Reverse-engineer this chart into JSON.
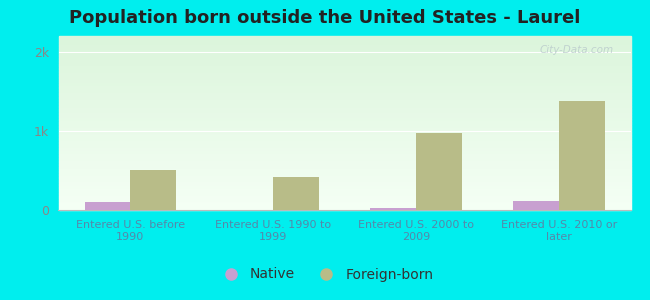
{
  "title": "Population born outside the United States - Laurel",
  "categories": [
    "Entered U.S. before\n1990",
    "Entered U.S. 1990 to\n1999",
    "Entered U.S. 2000 to\n2009",
    "Entered U.S. 2010 or\nlater"
  ],
  "native_values": [
    100,
    5,
    30,
    110
  ],
  "foreign_values": [
    500,
    420,
    970,
    1380
  ],
  "native_color": "#c8a0d0",
  "foreign_color": "#b8bc88",
  "ylim": [
    0,
    2200
  ],
  "yticks": [
    0,
    1000,
    2000
  ],
  "ytick_labels": [
    "0",
    "1k",
    "2k"
  ],
  "background_outer": "#00eeee",
  "bar_width": 0.32,
  "title_fontsize": 13,
  "legend_fontsize": 10,
  "watermark": "City-Data.com",
  "xtick_color": "#5588aa",
  "ytick_color": "#888888"
}
